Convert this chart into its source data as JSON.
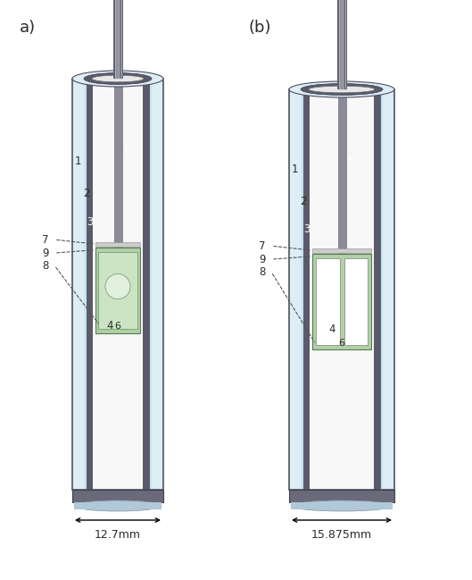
{
  "background": "#ffffff",
  "label_a": "a)",
  "label_b": "(b)",
  "dim_a": "12.7mm",
  "dim_b": "15.875mm",
  "colors": {
    "nacl_light": "#ddeef5",
    "nacl_mid": "#c5dde8",
    "nacl_dark": "#a8c8d8",
    "graphite": "#5a5a6a",
    "graphite_dark": "#404050",
    "mgo_white": "#f2f2f2",
    "mgo_inner": "#f8f8f8",
    "pyrex": "#c8e8f2",
    "green_capsule": "#b0d0a8",
    "green_light": "#cce4c4",
    "thermocouple": "#8a8a9a",
    "base_dark": "#6a6a7a",
    "base_light": "#9ab0c0",
    "base_blue": "#b0c8d8",
    "text_dark": "#2a2a2a",
    "annotation_line": "#555555",
    "wire_outer": "#606070",
    "wire_inner": "#909098",
    "plug_color": "#cccccc",
    "border_dark": "#505060"
  }
}
